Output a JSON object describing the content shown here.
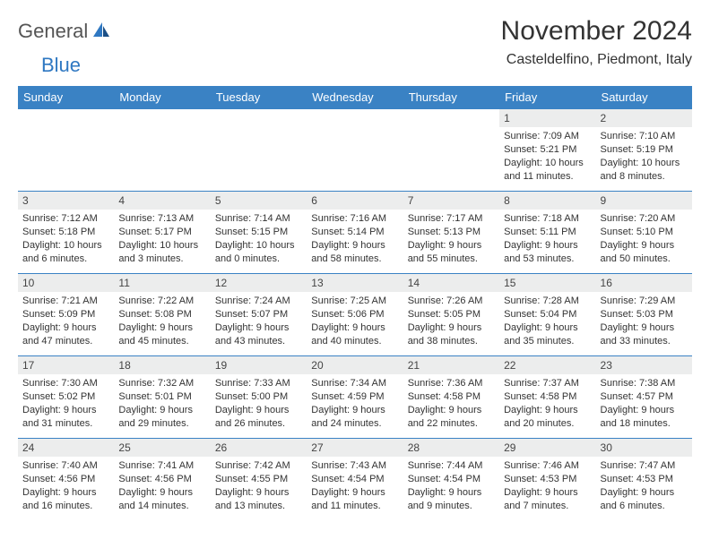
{
  "logo": {
    "general": "General",
    "blue": "Blue"
  },
  "header": {
    "month_title": "November 2024",
    "location": "Casteldelfino, Piedmont, Italy"
  },
  "colors": {
    "header_bg": "#3a82c4",
    "header_text": "#ffffff",
    "row_border": "#3a82c4",
    "daynum_bg": "#eceded",
    "text": "#333333",
    "logo_blue": "#2f78c2",
    "logo_gray": "#555555"
  },
  "days_of_week": [
    "Sunday",
    "Monday",
    "Tuesday",
    "Wednesday",
    "Thursday",
    "Friday",
    "Saturday"
  ],
  "weeks": [
    [
      null,
      null,
      null,
      null,
      null,
      {
        "n": "1",
        "sr": "Sunrise: 7:09 AM",
        "ss": "Sunset: 5:21 PM",
        "d1": "Daylight: 10 hours",
        "d2": "and 11 minutes."
      },
      {
        "n": "2",
        "sr": "Sunrise: 7:10 AM",
        "ss": "Sunset: 5:19 PM",
        "d1": "Daylight: 10 hours",
        "d2": "and 8 minutes."
      }
    ],
    [
      {
        "n": "3",
        "sr": "Sunrise: 7:12 AM",
        "ss": "Sunset: 5:18 PM",
        "d1": "Daylight: 10 hours",
        "d2": "and 6 minutes."
      },
      {
        "n": "4",
        "sr": "Sunrise: 7:13 AM",
        "ss": "Sunset: 5:17 PM",
        "d1": "Daylight: 10 hours",
        "d2": "and 3 minutes."
      },
      {
        "n": "5",
        "sr": "Sunrise: 7:14 AM",
        "ss": "Sunset: 5:15 PM",
        "d1": "Daylight: 10 hours",
        "d2": "and 0 minutes."
      },
      {
        "n": "6",
        "sr": "Sunrise: 7:16 AM",
        "ss": "Sunset: 5:14 PM",
        "d1": "Daylight: 9 hours",
        "d2": "and 58 minutes."
      },
      {
        "n": "7",
        "sr": "Sunrise: 7:17 AM",
        "ss": "Sunset: 5:13 PM",
        "d1": "Daylight: 9 hours",
        "d2": "and 55 minutes."
      },
      {
        "n": "8",
        "sr": "Sunrise: 7:18 AM",
        "ss": "Sunset: 5:11 PM",
        "d1": "Daylight: 9 hours",
        "d2": "and 53 minutes."
      },
      {
        "n": "9",
        "sr": "Sunrise: 7:20 AM",
        "ss": "Sunset: 5:10 PM",
        "d1": "Daylight: 9 hours",
        "d2": "and 50 minutes."
      }
    ],
    [
      {
        "n": "10",
        "sr": "Sunrise: 7:21 AM",
        "ss": "Sunset: 5:09 PM",
        "d1": "Daylight: 9 hours",
        "d2": "and 47 minutes."
      },
      {
        "n": "11",
        "sr": "Sunrise: 7:22 AM",
        "ss": "Sunset: 5:08 PM",
        "d1": "Daylight: 9 hours",
        "d2": "and 45 minutes."
      },
      {
        "n": "12",
        "sr": "Sunrise: 7:24 AM",
        "ss": "Sunset: 5:07 PM",
        "d1": "Daylight: 9 hours",
        "d2": "and 43 minutes."
      },
      {
        "n": "13",
        "sr": "Sunrise: 7:25 AM",
        "ss": "Sunset: 5:06 PM",
        "d1": "Daylight: 9 hours",
        "d2": "and 40 minutes."
      },
      {
        "n": "14",
        "sr": "Sunrise: 7:26 AM",
        "ss": "Sunset: 5:05 PM",
        "d1": "Daylight: 9 hours",
        "d2": "and 38 minutes."
      },
      {
        "n": "15",
        "sr": "Sunrise: 7:28 AM",
        "ss": "Sunset: 5:04 PM",
        "d1": "Daylight: 9 hours",
        "d2": "and 35 minutes."
      },
      {
        "n": "16",
        "sr": "Sunrise: 7:29 AM",
        "ss": "Sunset: 5:03 PM",
        "d1": "Daylight: 9 hours",
        "d2": "and 33 minutes."
      }
    ],
    [
      {
        "n": "17",
        "sr": "Sunrise: 7:30 AM",
        "ss": "Sunset: 5:02 PM",
        "d1": "Daylight: 9 hours",
        "d2": "and 31 minutes."
      },
      {
        "n": "18",
        "sr": "Sunrise: 7:32 AM",
        "ss": "Sunset: 5:01 PM",
        "d1": "Daylight: 9 hours",
        "d2": "and 29 minutes."
      },
      {
        "n": "19",
        "sr": "Sunrise: 7:33 AM",
        "ss": "Sunset: 5:00 PM",
        "d1": "Daylight: 9 hours",
        "d2": "and 26 minutes."
      },
      {
        "n": "20",
        "sr": "Sunrise: 7:34 AM",
        "ss": "Sunset: 4:59 PM",
        "d1": "Daylight: 9 hours",
        "d2": "and 24 minutes."
      },
      {
        "n": "21",
        "sr": "Sunrise: 7:36 AM",
        "ss": "Sunset: 4:58 PM",
        "d1": "Daylight: 9 hours",
        "d2": "and 22 minutes."
      },
      {
        "n": "22",
        "sr": "Sunrise: 7:37 AM",
        "ss": "Sunset: 4:58 PM",
        "d1": "Daylight: 9 hours",
        "d2": "and 20 minutes."
      },
      {
        "n": "23",
        "sr": "Sunrise: 7:38 AM",
        "ss": "Sunset: 4:57 PM",
        "d1": "Daylight: 9 hours",
        "d2": "and 18 minutes."
      }
    ],
    [
      {
        "n": "24",
        "sr": "Sunrise: 7:40 AM",
        "ss": "Sunset: 4:56 PM",
        "d1": "Daylight: 9 hours",
        "d2": "and 16 minutes."
      },
      {
        "n": "25",
        "sr": "Sunrise: 7:41 AM",
        "ss": "Sunset: 4:56 PM",
        "d1": "Daylight: 9 hours",
        "d2": "and 14 minutes."
      },
      {
        "n": "26",
        "sr": "Sunrise: 7:42 AM",
        "ss": "Sunset: 4:55 PM",
        "d1": "Daylight: 9 hours",
        "d2": "and 13 minutes."
      },
      {
        "n": "27",
        "sr": "Sunrise: 7:43 AM",
        "ss": "Sunset: 4:54 PM",
        "d1": "Daylight: 9 hours",
        "d2": "and 11 minutes."
      },
      {
        "n": "28",
        "sr": "Sunrise: 7:44 AM",
        "ss": "Sunset: 4:54 PM",
        "d1": "Daylight: 9 hours",
        "d2": "and 9 minutes."
      },
      {
        "n": "29",
        "sr": "Sunrise: 7:46 AM",
        "ss": "Sunset: 4:53 PM",
        "d1": "Daylight: 9 hours",
        "d2": "and 7 minutes."
      },
      {
        "n": "30",
        "sr": "Sunrise: 7:47 AM",
        "ss": "Sunset: 4:53 PM",
        "d1": "Daylight: 9 hours",
        "d2": "and 6 minutes."
      }
    ]
  ]
}
